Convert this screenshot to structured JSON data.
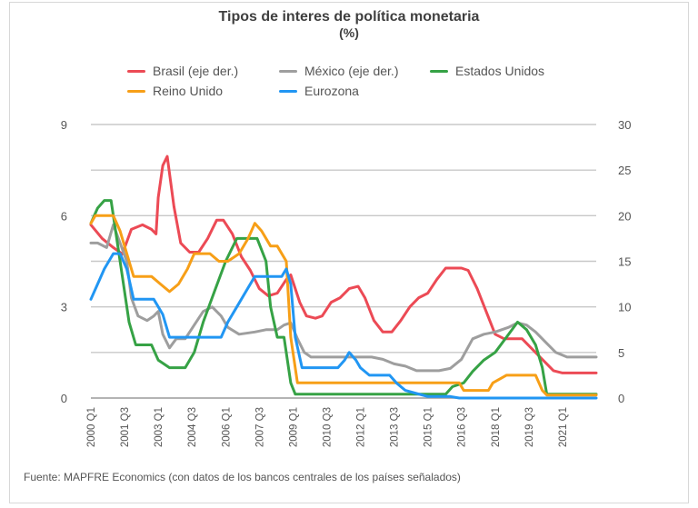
{
  "header": {
    "title": "Tipos de interes de política monetaria",
    "subtitle": "(%)"
  },
  "source": "Fuente: MAPFRE Economics (con datos de los bancos centrales de los países señalados)",
  "chart_data": {
    "type": "line",
    "title": "Tipos de interes de política monetaria",
    "subtitle": "(%)",
    "x_range": [
      2000.0,
      2022.5
    ],
    "x_tick_labels": [
      {
        "label": "2000 Q1",
        "x": 2000.0
      },
      {
        "label": "2001 Q3",
        "x": 2001.5
      },
      {
        "label": "2003 Q1",
        "x": 2003.0
      },
      {
        "label": "2004 Q3",
        "x": 2004.5
      },
      {
        "label": "2006 Q1",
        "x": 2006.0
      },
      {
        "label": "2007 Q3",
        "x": 2007.5
      },
      {
        "label": "2009 Q1",
        "x": 2009.0
      },
      {
        "label": "2010 Q3",
        "x": 2010.5
      },
      {
        "label": "2012 Q1",
        "x": 2012.0
      },
      {
        "label": "2013 Q3",
        "x": 2013.5
      },
      {
        "label": "2015 Q1",
        "x": 2015.0
      },
      {
        "label": "2016 Q3",
        "x": 2016.5
      },
      {
        "label": "2018 Q1",
        "x": 2018.0
      },
      {
        "label": "2019 Q3",
        "x": 2019.5
      },
      {
        "label": "2021 Q1",
        "x": 2021.0
      }
    ],
    "y_left": {
      "range": [
        0,
        9
      ],
      "ticks": [
        "0",
        "3",
        "6",
        "9"
      ]
    },
    "y_right": {
      "range": [
        0,
        30
      ],
      "ticks": [
        "0",
        "5",
        "10",
        "15",
        "20",
        "25",
        "30"
      ]
    },
    "grid": true,
    "legend_position": "top",
    "series": [
      {
        "name": "Brasil (eje der.)",
        "axis": "right",
        "color": "#ec4a55",
        "points": [
          [
            2000.0,
            19.0
          ],
          [
            2000.5,
            17.5
          ],
          [
            2001.0,
            16.5
          ],
          [
            2001.4,
            15.8
          ],
          [
            2001.8,
            18.5
          ],
          [
            2002.3,
            19.0
          ],
          [
            2002.7,
            18.5
          ],
          [
            2002.9,
            18.0
          ],
          [
            2003.0,
            22.0
          ],
          [
            2003.2,
            25.5
          ],
          [
            2003.4,
            26.5
          ],
          [
            2003.7,
            21.0
          ],
          [
            2004.0,
            17.0
          ],
          [
            2004.4,
            16.0
          ],
          [
            2004.8,
            16.0
          ],
          [
            2005.2,
            17.5
          ],
          [
            2005.6,
            19.5
          ],
          [
            2005.9,
            19.5
          ],
          [
            2006.3,
            18.0
          ],
          [
            2006.7,
            15.5
          ],
          [
            2007.1,
            14.0
          ],
          [
            2007.5,
            12.0
          ],
          [
            2007.9,
            11.2
          ],
          [
            2008.3,
            11.5
          ],
          [
            2008.7,
            13.0
          ],
          [
            2008.9,
            13.5
          ],
          [
            2009.3,
            10.5
          ],
          [
            2009.6,
            9.0
          ],
          [
            2010.0,
            8.75
          ],
          [
            2010.3,
            9.0
          ],
          [
            2010.7,
            10.5
          ],
          [
            2011.1,
            11.0
          ],
          [
            2011.5,
            12.0
          ],
          [
            2011.9,
            12.25
          ],
          [
            2012.2,
            11.0
          ],
          [
            2012.6,
            8.5
          ],
          [
            2013.0,
            7.25
          ],
          [
            2013.4,
            7.25
          ],
          [
            2013.8,
            8.5
          ],
          [
            2014.2,
            10.0
          ],
          [
            2014.6,
            11.0
          ],
          [
            2015.0,
            11.5
          ],
          [
            2015.4,
            13.0
          ],
          [
            2015.8,
            14.25
          ],
          [
            2016.5,
            14.25
          ],
          [
            2016.8,
            14.0
          ],
          [
            2017.2,
            12.0
          ],
          [
            2017.6,
            9.5
          ],
          [
            2018.0,
            7.0
          ],
          [
            2018.4,
            6.5
          ],
          [
            2019.2,
            6.5
          ],
          [
            2019.6,
            5.5
          ],
          [
            2020.0,
            4.5
          ],
          [
            2020.3,
            3.75
          ],
          [
            2020.6,
            3.0
          ],
          [
            2021.0,
            2.75
          ],
          [
            2022.5,
            2.75
          ]
        ]
      },
      {
        "name": "México (eje der.)",
        "axis": "right",
        "color": "#9e9e9e",
        "points": [
          [
            2000.0,
            17.0
          ],
          [
            2000.3,
            17.0
          ],
          [
            2000.7,
            16.5
          ],
          [
            2001.0,
            19.0
          ],
          [
            2001.3,
            17.0
          ],
          [
            2001.6,
            15.0
          ],
          [
            2001.8,
            11.0
          ],
          [
            2002.1,
            9.0
          ],
          [
            2002.5,
            8.5
          ],
          [
            2002.8,
            9.0
          ],
          [
            2003.0,
            9.5
          ],
          [
            2003.2,
            7.0
          ],
          [
            2003.5,
            5.5
          ],
          [
            2003.8,
            6.5
          ],
          [
            2004.2,
            6.5
          ],
          [
            2004.6,
            8.0
          ],
          [
            2005.0,
            9.5
          ],
          [
            2005.4,
            10.0
          ],
          [
            2005.8,
            9.0
          ],
          [
            2006.1,
            7.75
          ],
          [
            2006.6,
            7.0
          ],
          [
            2007.3,
            7.25
          ],
          [
            2007.8,
            7.5
          ],
          [
            2008.3,
            7.5
          ],
          [
            2008.6,
            8.0
          ],
          [
            2008.9,
            8.25
          ],
          [
            2009.2,
            6.5
          ],
          [
            2009.5,
            5.0
          ],
          [
            2009.8,
            4.5
          ],
          [
            2012.5,
            4.5
          ],
          [
            2013.0,
            4.25
          ],
          [
            2013.5,
            3.75
          ],
          [
            2014.0,
            3.5
          ],
          [
            2014.5,
            3.0
          ],
          [
            2015.5,
            3.0
          ],
          [
            2016.0,
            3.25
          ],
          [
            2016.5,
            4.25
          ],
          [
            2017.0,
            6.5
          ],
          [
            2017.5,
            7.0
          ],
          [
            2018.0,
            7.25
          ],
          [
            2018.6,
            7.75
          ],
          [
            2019.0,
            8.25
          ],
          [
            2019.4,
            8.0
          ],
          [
            2019.8,
            7.25
          ],
          [
            2020.3,
            6.0
          ],
          [
            2020.7,
            5.0
          ],
          [
            2021.2,
            4.5
          ],
          [
            2022.5,
            4.5
          ]
        ]
      },
      {
        "name": "Estados Unidos",
        "axis": "left",
        "color": "#36a245",
        "points": [
          [
            2000.0,
            5.75
          ],
          [
            2000.3,
            6.25
          ],
          [
            2000.6,
            6.5
          ],
          [
            2000.9,
            6.5
          ],
          [
            2001.1,
            5.5
          ],
          [
            2001.4,
            4.0
          ],
          [
            2001.7,
            2.5
          ],
          [
            2002.0,
            1.75
          ],
          [
            2002.7,
            1.75
          ],
          [
            2003.0,
            1.25
          ],
          [
            2003.5,
            1.0
          ],
          [
            2004.2,
            1.0
          ],
          [
            2004.6,
            1.5
          ],
          [
            2005.0,
            2.5
          ],
          [
            2005.5,
            3.5
          ],
          [
            2006.0,
            4.5
          ],
          [
            2006.5,
            5.25
          ],
          [
            2007.4,
            5.25
          ],
          [
            2007.8,
            4.5
          ],
          [
            2008.0,
            3.0
          ],
          [
            2008.3,
            2.0
          ],
          [
            2008.6,
            2.0
          ],
          [
            2008.9,
            0.5
          ],
          [
            2009.1,
            0.125
          ],
          [
            2015.8,
            0.125
          ],
          [
            2016.1,
            0.375
          ],
          [
            2016.6,
            0.5
          ],
          [
            2017.0,
            0.875
          ],
          [
            2017.5,
            1.25
          ],
          [
            2018.0,
            1.5
          ],
          [
            2018.5,
            2.0
          ],
          [
            2019.0,
            2.5
          ],
          [
            2019.4,
            2.25
          ],
          [
            2019.8,
            1.75
          ],
          [
            2020.1,
            1.0
          ],
          [
            2020.3,
            0.125
          ],
          [
            2022.5,
            0.125
          ]
        ]
      },
      {
        "name": "Reino Unido",
        "axis": "left",
        "color": "#f79f17",
        "points": [
          [
            2000.0,
            5.75
          ],
          [
            2000.2,
            6.0
          ],
          [
            2001.0,
            6.0
          ],
          [
            2001.3,
            5.5
          ],
          [
            2001.6,
            4.75
          ],
          [
            2001.9,
            4.0
          ],
          [
            2002.7,
            4.0
          ],
          [
            2003.1,
            3.75
          ],
          [
            2003.5,
            3.5
          ],
          [
            2003.9,
            3.75
          ],
          [
            2004.3,
            4.25
          ],
          [
            2004.6,
            4.75
          ],
          [
            2005.3,
            4.75
          ],
          [
            2005.7,
            4.5
          ],
          [
            2006.1,
            4.5
          ],
          [
            2006.6,
            4.75
          ],
          [
            2007.0,
            5.25
          ],
          [
            2007.3,
            5.75
          ],
          [
            2007.6,
            5.5
          ],
          [
            2008.0,
            5.0
          ],
          [
            2008.3,
            5.0
          ],
          [
            2008.7,
            4.5
          ],
          [
            2008.9,
            2.0
          ],
          [
            2009.2,
            0.5
          ],
          [
            2016.4,
            0.5
          ],
          [
            2016.6,
            0.25
          ],
          [
            2017.7,
            0.25
          ],
          [
            2017.9,
            0.5
          ],
          [
            2018.5,
            0.75
          ],
          [
            2019.8,
            0.75
          ],
          [
            2020.1,
            0.25
          ],
          [
            2020.3,
            0.1
          ],
          [
            2022.5,
            0.1
          ]
        ]
      },
      {
        "name": "Eurozona",
        "axis": "left",
        "color": "#2196f3",
        "points": [
          [
            2000.0,
            3.25
          ],
          [
            2000.3,
            3.75
          ],
          [
            2000.6,
            4.25
          ],
          [
            2001.0,
            4.75
          ],
          [
            2001.3,
            4.75
          ],
          [
            2001.6,
            4.25
          ],
          [
            2001.9,
            3.25
          ],
          [
            2002.8,
            3.25
          ],
          [
            2003.2,
            2.75
          ],
          [
            2003.5,
            2.0
          ],
          [
            2005.8,
            2.0
          ],
          [
            2006.1,
            2.5
          ],
          [
            2006.5,
            3.0
          ],
          [
            2006.9,
            3.5
          ],
          [
            2007.3,
            4.0
          ],
          [
            2008.5,
            4.0
          ],
          [
            2008.7,
            4.25
          ],
          [
            2008.9,
            3.75
          ],
          [
            2009.1,
            2.0
          ],
          [
            2009.4,
            1.0
          ],
          [
            2011.0,
            1.0
          ],
          [
            2011.3,
            1.25
          ],
          [
            2011.5,
            1.5
          ],
          [
            2011.8,
            1.25
          ],
          [
            2012.0,
            1.0
          ],
          [
            2012.4,
            0.75
          ],
          [
            2013.3,
            0.75
          ],
          [
            2013.6,
            0.5
          ],
          [
            2014.0,
            0.25
          ],
          [
            2014.5,
            0.15
          ],
          [
            2015.0,
            0.05
          ],
          [
            2016.0,
            0.05
          ],
          [
            2016.4,
            0.0
          ],
          [
            2022.5,
            0.0
          ]
        ]
      }
    ]
  }
}
